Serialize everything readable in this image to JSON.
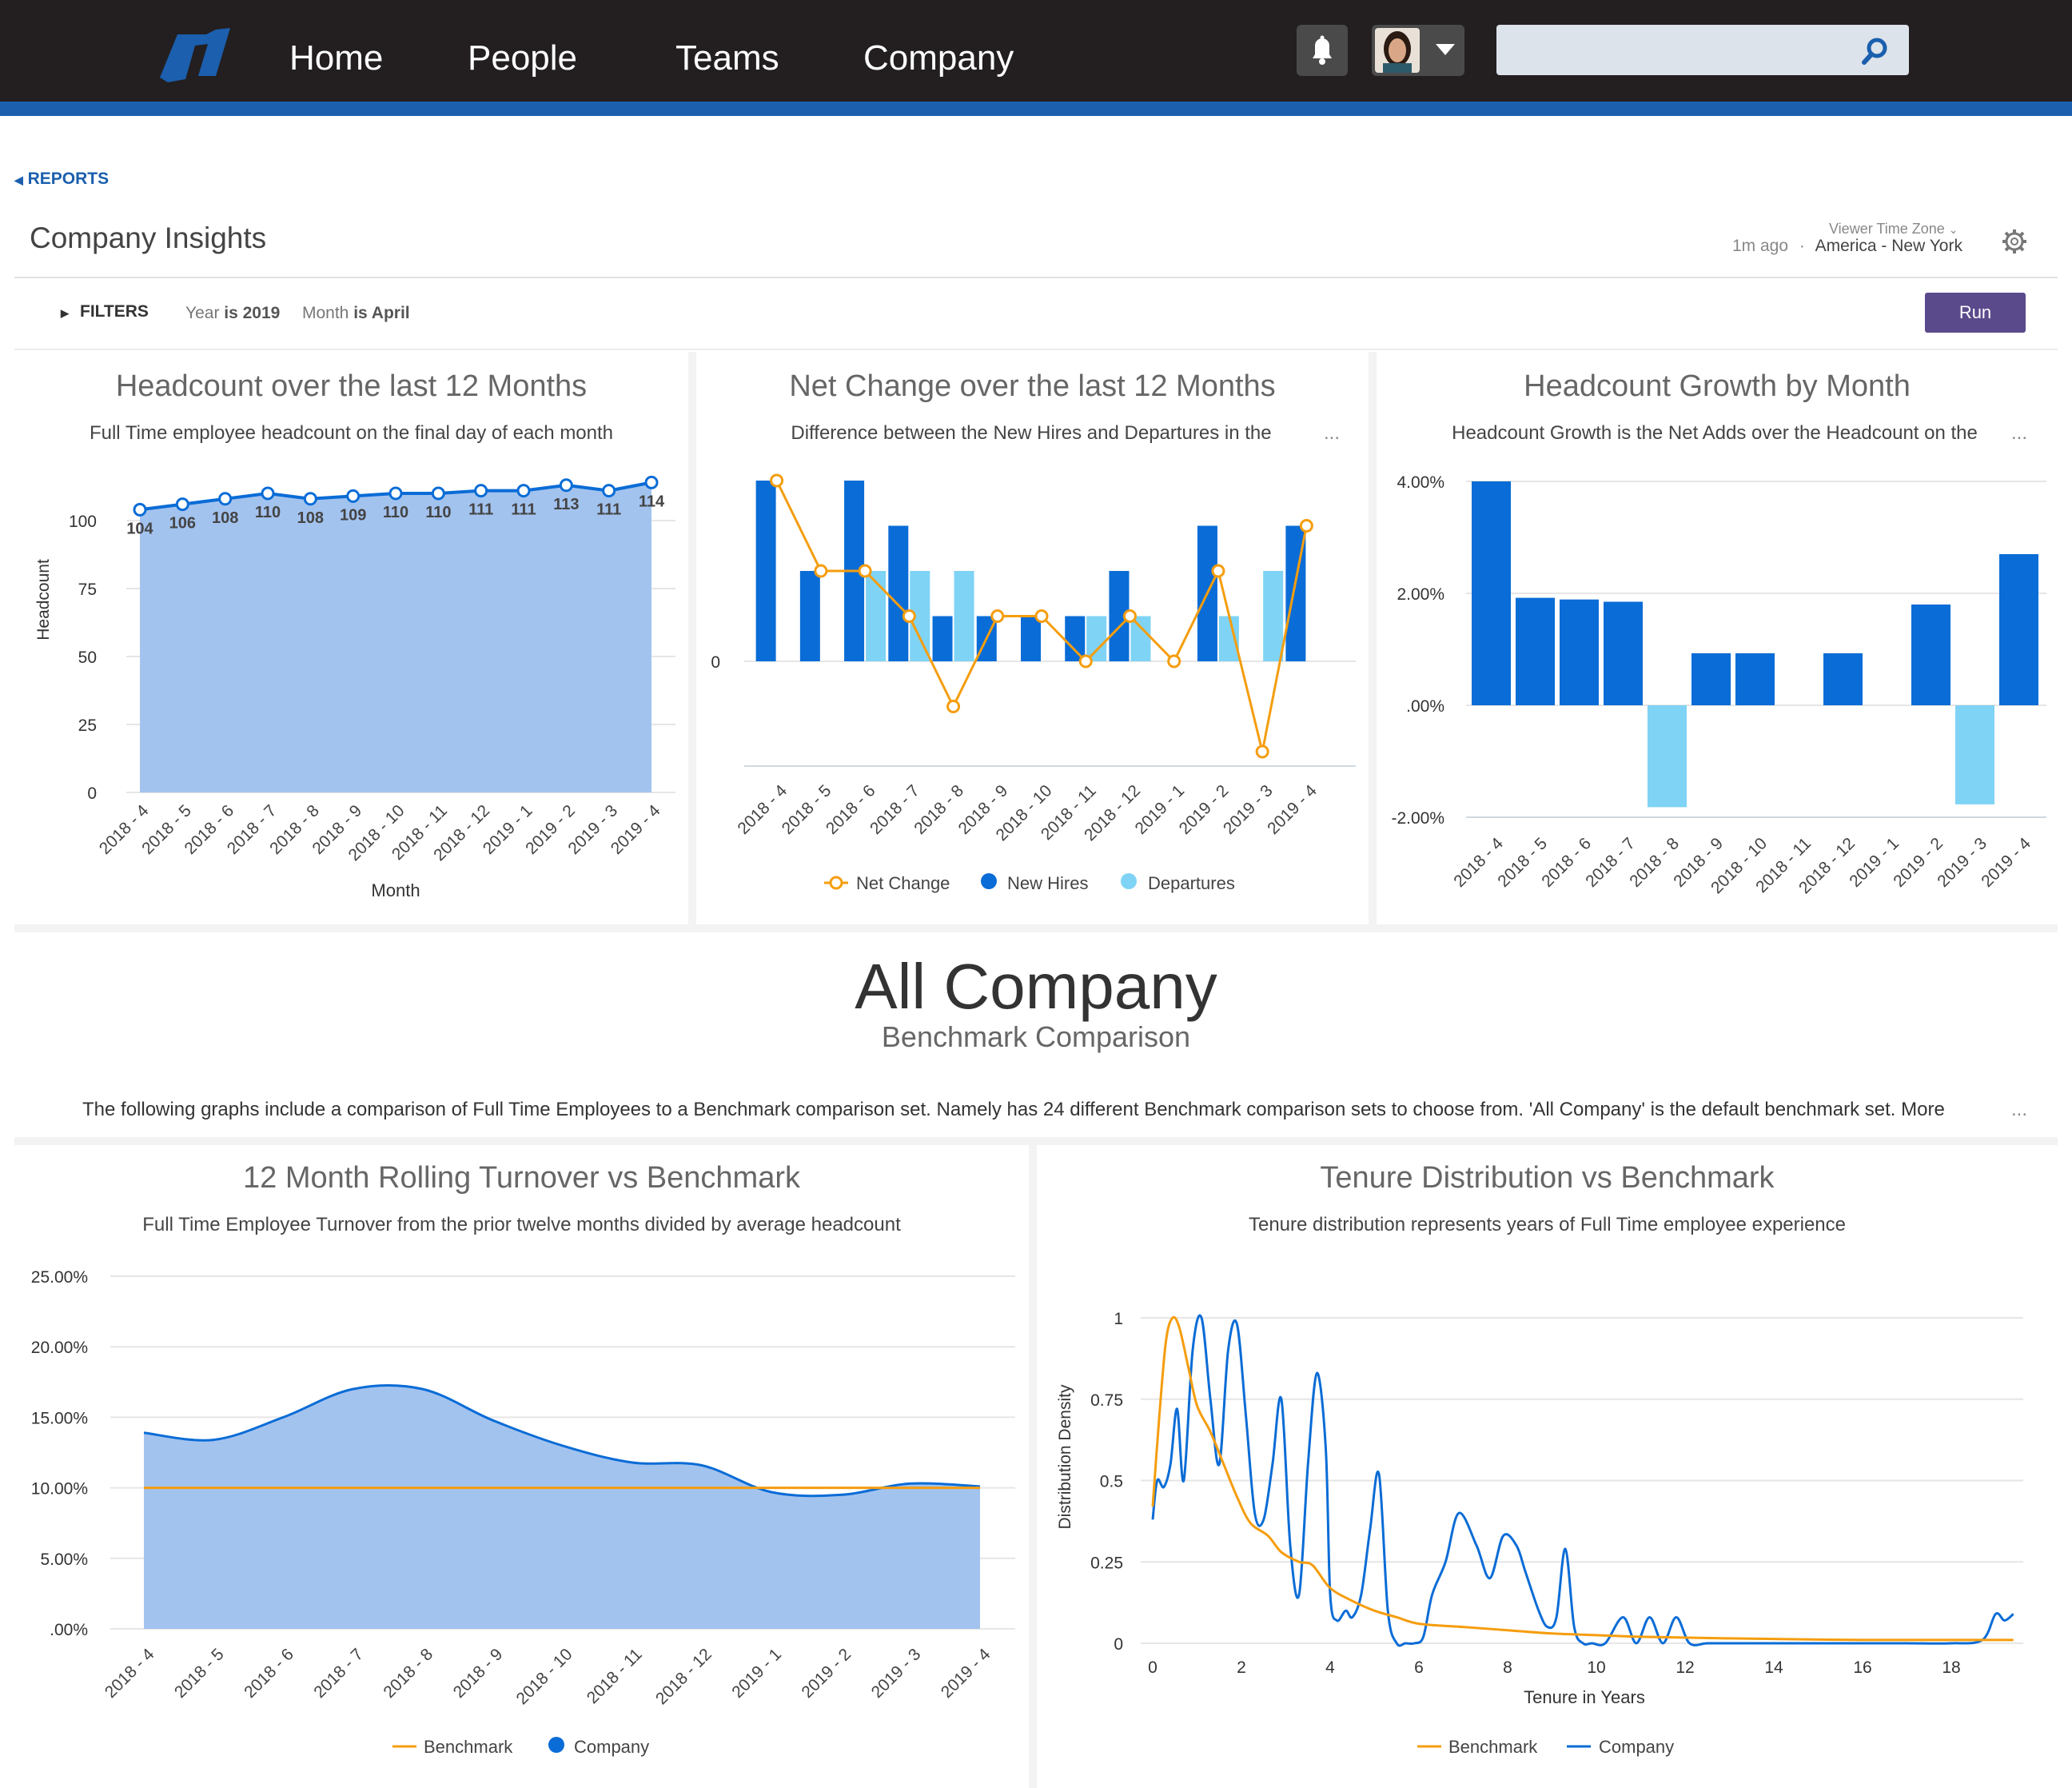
{
  "nav": {
    "home": "Home",
    "people": "People",
    "teams": "Teams",
    "company": "Company"
  },
  "breadcrumb": "REPORTS",
  "page_title": "Company Insights",
  "meta": {
    "updated": "1m ago",
    "separator": "·",
    "tz_label": "Viewer Time Zone",
    "tz_value": "America - New York"
  },
  "filters": {
    "label": "FILTERS",
    "f1_name": "Year",
    "f1_value": "is 2019",
    "f2_name": "Month",
    "f2_value": "is April",
    "run": "Run"
  },
  "colors": {
    "nav_bg": "#231f20",
    "accent_blue": "#1b5fae",
    "run_purple": "#5b4a8b",
    "series_dark": "#0a6cd6",
    "series_light": "#7fd3f5",
    "series_orange": "#f59d0e",
    "area_fill": "#a3c3ef"
  },
  "panels": {
    "headcount": {
      "title": "Headcount over the last 12 Months",
      "subtitle": "Full Time employee headcount on the final day of each month"
    },
    "netchange": {
      "title": "Net Change over the last 12 Months",
      "subtitle": "Difference between the New Hires and Departures in the",
      "more": "..."
    },
    "growth": {
      "title": "Headcount Growth by Month",
      "subtitle": "Headcount Growth is the Net Adds over the Headcount on the",
      "more": "..."
    },
    "turnover": {
      "title": "12 Month Rolling Turnover vs Benchmark",
      "subtitle": "Full Time Employee Turnover from the prior twelve months divided by average headcount"
    },
    "tenure": {
      "title": "Tenure Distribution vs Benchmark",
      "subtitle": "Tenure distribution represents years of Full Time employee experience"
    }
  },
  "section": {
    "title": "All Company",
    "subtitle": "Benchmark Comparison",
    "description": "The following graphs include a comparison of Full Time Employees to a Benchmark comparison set. Namely has 24 different Benchmark comparison sets to choose from. 'All Company' is the default benchmark set. More",
    "more": "..."
  },
  "chart_data": [
    {
      "id": "headcount",
      "type": "area",
      "categories": [
        "2018 - 4",
        "2018 - 5",
        "2018 - 6",
        "2018 - 7",
        "2018 - 8",
        "2018 - 9",
        "2018 - 10",
        "2018 - 11",
        "2018 - 12",
        "2019 - 1",
        "2019 - 2",
        "2019 - 3",
        "2019 - 4"
      ],
      "values": [
        104,
        106,
        108,
        110,
        108,
        109,
        110,
        110,
        111,
        111,
        113,
        111,
        114
      ],
      "ylabel": "Headcount",
      "xlabel": "Month",
      "yticks": [
        "0",
        "25",
        "50",
        "75",
        "100"
      ],
      "ylim": [
        0,
        115
      ]
    },
    {
      "id": "netchange",
      "type": "bar",
      "categories": [
        "2018 - 4",
        "2018 - 5",
        "2018 - 6",
        "2018 - 7",
        "2018 - 8",
        "2018 - 9",
        "2018 - 10",
        "2018 - 11",
        "2018 - 12",
        "2019 - 1",
        "2019 - 2",
        "2019 - 3",
        "2019 - 4"
      ],
      "series": [
        {
          "name": "Net Change",
          "kind": "line",
          "values": [
            4,
            2,
            2,
            1,
            -1,
            1,
            1,
            0,
            1,
            0,
            2,
            -2,
            3
          ]
        },
        {
          "name": "New Hires",
          "kind": "bar",
          "values": [
            4,
            2,
            4,
            3,
            1,
            1,
            1,
            1,
            2,
            0,
            3,
            0,
            3
          ]
        },
        {
          "name": "Departures",
          "kind": "bar",
          "values": [
            0,
            0,
            2,
            2,
            2,
            0,
            0,
            1,
            1,
            0,
            1,
            2,
            0
          ]
        }
      ],
      "yticks": [
        "0"
      ],
      "ylim": [
        -2.3,
        4.3
      ]
    },
    {
      "id": "growth",
      "type": "bar",
      "categories": [
        "2018 - 4",
        "2018 - 5",
        "2018 - 6",
        "2018 - 7",
        "2018 - 8",
        "2018 - 9",
        "2018 - 10",
        "2018 - 11",
        "2018 - 12",
        "2019 - 1",
        "2019 - 2",
        "2019 - 3",
        "2019 - 4"
      ],
      "values": [
        4.0,
        1.92,
        1.89,
        1.85,
        -1.82,
        0.93,
        0.93,
        0,
        0.93,
        0,
        1.8,
        -1.77,
        2.7
      ],
      "yticks": [
        "4.00%",
        "2.00%",
        ".00%",
        "-2.00%"
      ],
      "ylim": [
        -2,
        4
      ]
    },
    {
      "id": "turnover",
      "type": "area",
      "categories": [
        "2018 - 4",
        "2018 - 5",
        "2018 - 6",
        "2018 - 7",
        "2018 - 8",
        "2018 - 9",
        "2018 - 10",
        "2018 - 11",
        "2018 - 12",
        "2019 - 1",
        "2019 - 2",
        "2019 - 3",
        "2019 - 4"
      ],
      "series": [
        {
          "name": "Benchmark",
          "values": [
            10,
            10,
            10,
            10,
            10,
            10,
            10,
            10,
            10,
            10,
            10,
            10,
            10
          ]
        },
        {
          "name": "Company",
          "values": [
            13.9,
            13.4,
            15.0,
            17.0,
            17.0,
            14.8,
            13.0,
            11.8,
            11.6,
            9.7,
            9.5,
            10.3,
            10.1
          ]
        }
      ],
      "yticks": [
        ".00%",
        "5.00%",
        "10.00%",
        "15.00%",
        "20.00%",
        "25.00%"
      ],
      "ylim": [
        0,
        25
      ]
    },
    {
      "id": "tenure",
      "type": "line",
      "xlabel": "Tenure in Years",
      "ylabel": "Distribution Density",
      "xticks": [
        "0",
        "2",
        "4",
        "6",
        "8",
        "10",
        "12",
        "14",
        "16",
        "18"
      ],
      "yticks": [
        "0",
        "0.25",
        "0.5",
        "0.75",
        "1"
      ],
      "xlim": [
        0,
        19.4
      ],
      "ylim": [
        0,
        1
      ],
      "series": [
        {
          "name": "Benchmark",
          "x": [
            0,
            0.15,
            0.3,
            0.45,
            0.6,
            0.8,
            1.0,
            1.3,
            1.6,
            1.9,
            2.2,
            2.6,
            2.9,
            3.3,
            3.6,
            4.0,
            4.5,
            5.0,
            5.5,
            6.0,
            7.0,
            8.0,
            9.0,
            10.0,
            11.0,
            13.0,
            16.0,
            18.0,
            19.4
          ],
          "y": [
            0.42,
            0.7,
            0.93,
            1.0,
            0.97,
            0.85,
            0.73,
            0.65,
            0.55,
            0.45,
            0.37,
            0.33,
            0.28,
            0.25,
            0.24,
            0.17,
            0.13,
            0.1,
            0.08,
            0.06,
            0.05,
            0.04,
            0.03,
            0.025,
            0.02,
            0.015,
            0.01,
            0.01,
            0.01
          ]
        },
        {
          "name": "Company",
          "x": [
            0,
            0.1,
            0.25,
            0.4,
            0.55,
            0.7,
            0.9,
            1.1,
            1.3,
            1.5,
            1.7,
            1.9,
            2.1,
            2.3,
            2.5,
            2.7,
            2.9,
            3.1,
            3.3,
            3.5,
            3.7,
            3.9,
            4.0,
            4.15,
            4.35,
            4.5,
            4.7,
            4.9,
            5.1,
            5.3,
            5.5,
            5.7,
            5.9,
            6.1,
            6.3,
            6.6,
            6.9,
            7.3,
            7.6,
            7.9,
            8.2,
            8.4,
            8.7,
            8.9,
            9.1,
            9.3,
            9.5,
            9.7,
            9.9,
            10.2,
            10.6,
            10.9,
            11.2,
            11.5,
            11.8,
            12.1,
            12.5,
            13,
            14,
            15,
            16,
            17,
            18,
            18.7,
            19.0,
            19.2,
            19.4
          ],
          "y": [
            0.38,
            0.5,
            0.48,
            0.55,
            0.72,
            0.5,
            0.9,
            1.0,
            0.75,
            0.55,
            0.9,
            0.98,
            0.7,
            0.4,
            0.38,
            0.55,
            0.75,
            0.3,
            0.15,
            0.55,
            0.83,
            0.6,
            0.15,
            0.07,
            0.1,
            0.08,
            0.15,
            0.35,
            0.52,
            0.1,
            0.0,
            0.0,
            0.0,
            0.02,
            0.15,
            0.25,
            0.4,
            0.3,
            0.2,
            0.33,
            0.3,
            0.22,
            0.1,
            0.05,
            0.08,
            0.29,
            0.05,
            0.0,
            0.0,
            0.0,
            0.08,
            0.0,
            0.08,
            0.0,
            0.08,
            0.0,
            0.0,
            0.0,
            0.0,
            0.0,
            0.0,
            0.0,
            0.0,
            0.01,
            0.09,
            0.07,
            0.09
          ]
        }
      ]
    }
  ]
}
